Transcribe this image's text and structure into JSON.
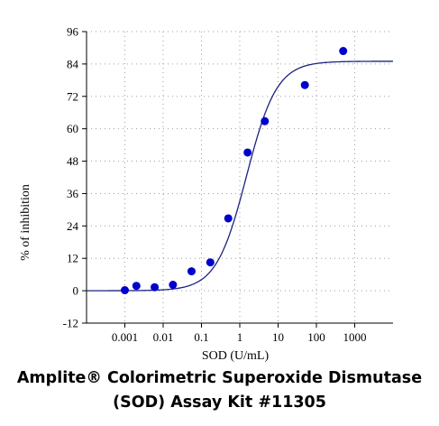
{
  "caption": {
    "line1": "Amplite® Colorimetric Superoxide Dismutase",
    "line2": "(SOD) Assay Kit #11305"
  },
  "chart_data": {
    "type": "scatter",
    "title": "",
    "xlabel": "SOD (U/mL)",
    "ylabel": "% of inhibition",
    "x_scale": "log",
    "xlim": [
      0.0001,
      10000
    ],
    "ylim": [
      -12,
      96
    ],
    "x_ticks": [
      0.001,
      0.01,
      0.1,
      1,
      10,
      100,
      1000
    ],
    "x_tick_labels": [
      "0.001",
      "0.01",
      "0.1",
      "1",
      "10",
      "100",
      "1000"
    ],
    "y_ticks": [
      -12,
      0,
      12,
      24,
      36,
      48,
      60,
      72,
      84,
      96
    ],
    "y_tick_labels": [
      "-12",
      "0",
      "12",
      "24",
      "36",
      "48",
      "60",
      "72",
      "84",
      "96"
    ],
    "grid": true,
    "marker_color": "#0000cc",
    "curve_color": "#1a237e",
    "series": [
      {
        "points": [
          {
            "x": 0.001,
            "y": 0.2
          },
          {
            "x": 0.002,
            "y": 1.8
          },
          {
            "x": 0.006,
            "y": 1.3
          },
          {
            "x": 0.018,
            "y": 2.2
          },
          {
            "x": 0.055,
            "y": 7.2
          },
          {
            "x": 0.17,
            "y": 10.5
          },
          {
            "x": 0.5,
            "y": 26.8
          },
          {
            "x": 1.6,
            "y": 51.2
          },
          {
            "x": 4.5,
            "y": 62.8
          },
          {
            "x": 50,
            "y": 76.2
          },
          {
            "x": 500,
            "y": 88.8
          }
        ]
      }
    ],
    "fit_curve": {
      "model": "4PL",
      "bottom": 0,
      "top": 85,
      "ec50": 1.5,
      "hill": 1.1
    }
  }
}
